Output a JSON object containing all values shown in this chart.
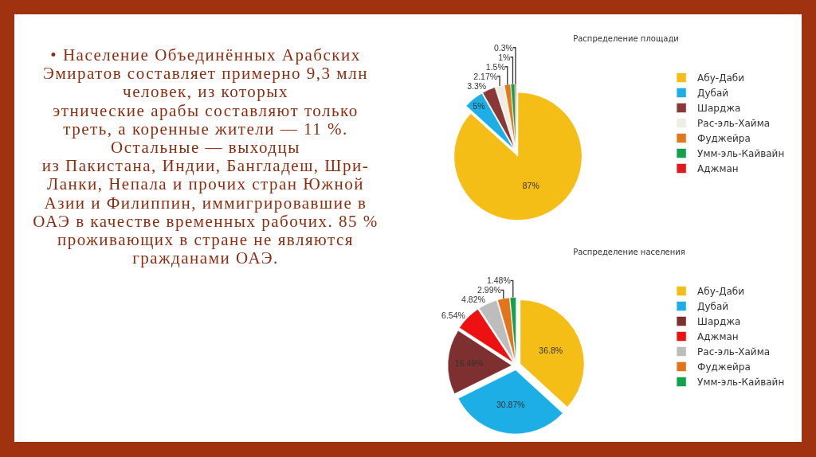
{
  "chart_data": [
    {
      "type": "other",
      "annotations": [
        "• Население Объединённых Арабских Эмиратов составляет примерно 9,3 млн человек, из которых\nэтнические арабы составляют только треть, а коренные жители — 11 %.\nОстальные — выходцы\nиз Пакистана, Индии, Бангладеш, Шри-Ланки, Непала и прочих стран Южной Азии и Филиппин, иммигрировавшие в ОАЭ в качестве временных рабочих. 85 % проживающих в стране не являются гражданами ОАЭ."
      ]
    },
    {
      "type": "pie",
      "title": "Распределение площади",
      "categories": [
        "Абу-Даби",
        "Дубай",
        "Шарджа",
        "Рас-эль-Хайма",
        "Фуджейра",
        "Умм-эль-Кайвайн",
        "Аджман"
      ],
      "values": [
        87,
        5,
        3.3,
        2.17,
        1.5,
        1,
        0.3
      ],
      "colors": [
        "#f5be16",
        "#1eaee6",
        "#8a3737",
        "#eeede4",
        "#e2791f",
        "#13a14e",
        "#e01b1b"
      ],
      "value_labels": [
        "87%",
        "5%",
        "3.3%",
        "2.17%",
        "1.5%",
        "1%",
        "0.3%"
      ],
      "legend": "right"
    },
    {
      "type": "pie",
      "title": "Распределение населения",
      "categories": [
        "Абу-Даби",
        "Дубай",
        "Шарджа",
        "Аджман",
        "Рас-эль-Хайма",
        "Фуджейра",
        "Умм-эль-Кайвайн"
      ],
      "values": [
        36.8,
        30.87,
        16.49,
        6.54,
        4.82,
        2.99,
        1.48
      ],
      "colors": [
        "#f5be16",
        "#1eaee6",
        "#7e2f2f",
        "#ee1111",
        "#bdbdbd",
        "#e2741b",
        "#13a14e"
      ],
      "value_labels": [
        "36.8%",
        "30.87%",
        "16.49%",
        "6.54%",
        "4.82%",
        "2.99%",
        "1.48%"
      ],
      "legend": "right"
    }
  ]
}
